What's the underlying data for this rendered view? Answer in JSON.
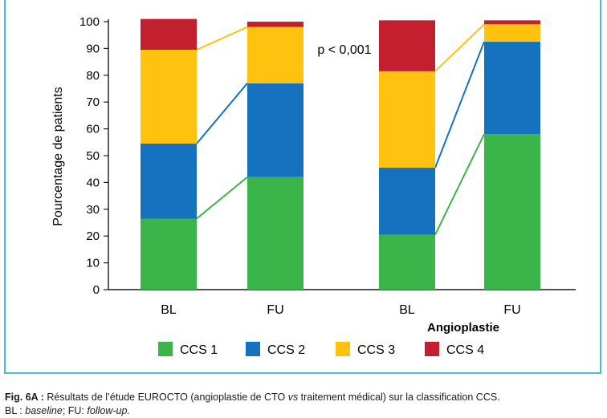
{
  "chart_data": {
    "type": "bar",
    "stacked": true,
    "ylabel": "Pourcentage de patients",
    "ylim": [
      0,
      100
    ],
    "yticks": [
      0,
      10,
      20,
      30,
      40,
      50,
      60,
      70,
      80,
      90,
      100
    ],
    "categories": [
      "BL",
      "FU",
      "BL",
      "FU"
    ],
    "group_label": "Angioplastie",
    "annotation": "p < 0,001",
    "legend_position": "bottom",
    "series": [
      {
        "name": "CCS 1",
        "color": "#3ab54a",
        "values": [
          26.5,
          42,
          20.5,
          58
        ]
      },
      {
        "name": "CCS 2",
        "color": "#1572be",
        "values": [
          28,
          35,
          25,
          34.5
        ]
      },
      {
        "name": "CCS 3",
        "color": "#ffc20e",
        "values": [
          35,
          21,
          36,
          6.5
        ]
      },
      {
        "name": "CCS 4",
        "color": "#c2202e",
        "values": [
          11.5,
          2,
          19,
          1.5
        ]
      }
    ]
  },
  "caption": {
    "fig_label": "Fig. 6A :",
    "text_a": " Résultats de l’étude EUROCTO (angioplastie de CTO ",
    "vs": "vs",
    "text_b": " traitement médical) sur la classification CCS.",
    "line2_a": "BL : ",
    "line2_baseline": "baseline",
    "line2_b": "; FU: ",
    "line2_followup": "follow-up."
  }
}
